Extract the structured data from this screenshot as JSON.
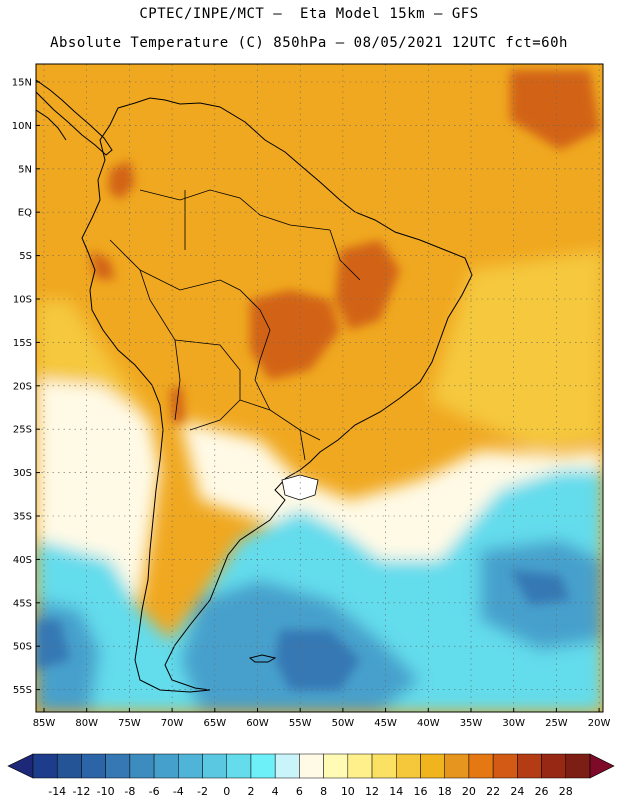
{
  "title_line1": "CPTEC/INPE/MCT –  Eta Model 15km – GFS",
  "title_line2": "Absolute Temperature (C) 850hPa – 08/05/2021 12UTC fct=60h",
  "lat_labels": [
    "15N",
    "10N",
    "5N",
    "EQ",
    "5S",
    "10S",
    "15S",
    "20S",
    "25S",
    "30S",
    "35S",
    "40S",
    "45S",
    "50S",
    "55S"
  ],
  "lon_labels": [
    "85W",
    "80W",
    "75W",
    "70W",
    "65W",
    "60W",
    "55W",
    "50W",
    "45W",
    "40W",
    "35W",
    "30W",
    "25W",
    "20W"
  ],
  "colorbar": {
    "ticks": [
      "-14",
      "-12",
      "-10",
      "-8",
      "-6",
      "-4",
      "-2",
      "0",
      "2",
      "4",
      "6",
      "8",
      "10",
      "12",
      "14",
      "16",
      "18",
      "20",
      "22",
      "24",
      "26",
      "28"
    ],
    "colors": [
      "#1e3c8c",
      "#245496",
      "#2c64a8",
      "#3578b4",
      "#3c8cc0",
      "#46a0cc",
      "#50b4d8",
      "#5ac8e0",
      "#64dcec",
      "#6ef0f8",
      "#c8f4fa",
      "#fffae6",
      "#fffab4",
      "#fff08c",
      "#fae164",
      "#f5c83c",
      "#f0b41e",
      "#e6961e",
      "#e67814",
      "#d25a14",
      "#b43c14",
      "#962814",
      "#7d1e14"
    ],
    "under_color": "#1e2878",
    "over_color": "#7d0a28"
  },
  "colors": {
    "ocean_warm": "#f0a820",
    "land_base": "#e8961e",
    "hot": "#d26414",
    "mild": "#f5c83c",
    "cool": "#fffae6",
    "cold": "#64dcec",
    "colder": "#46a0cc",
    "coldest": "#3578b4"
  }
}
